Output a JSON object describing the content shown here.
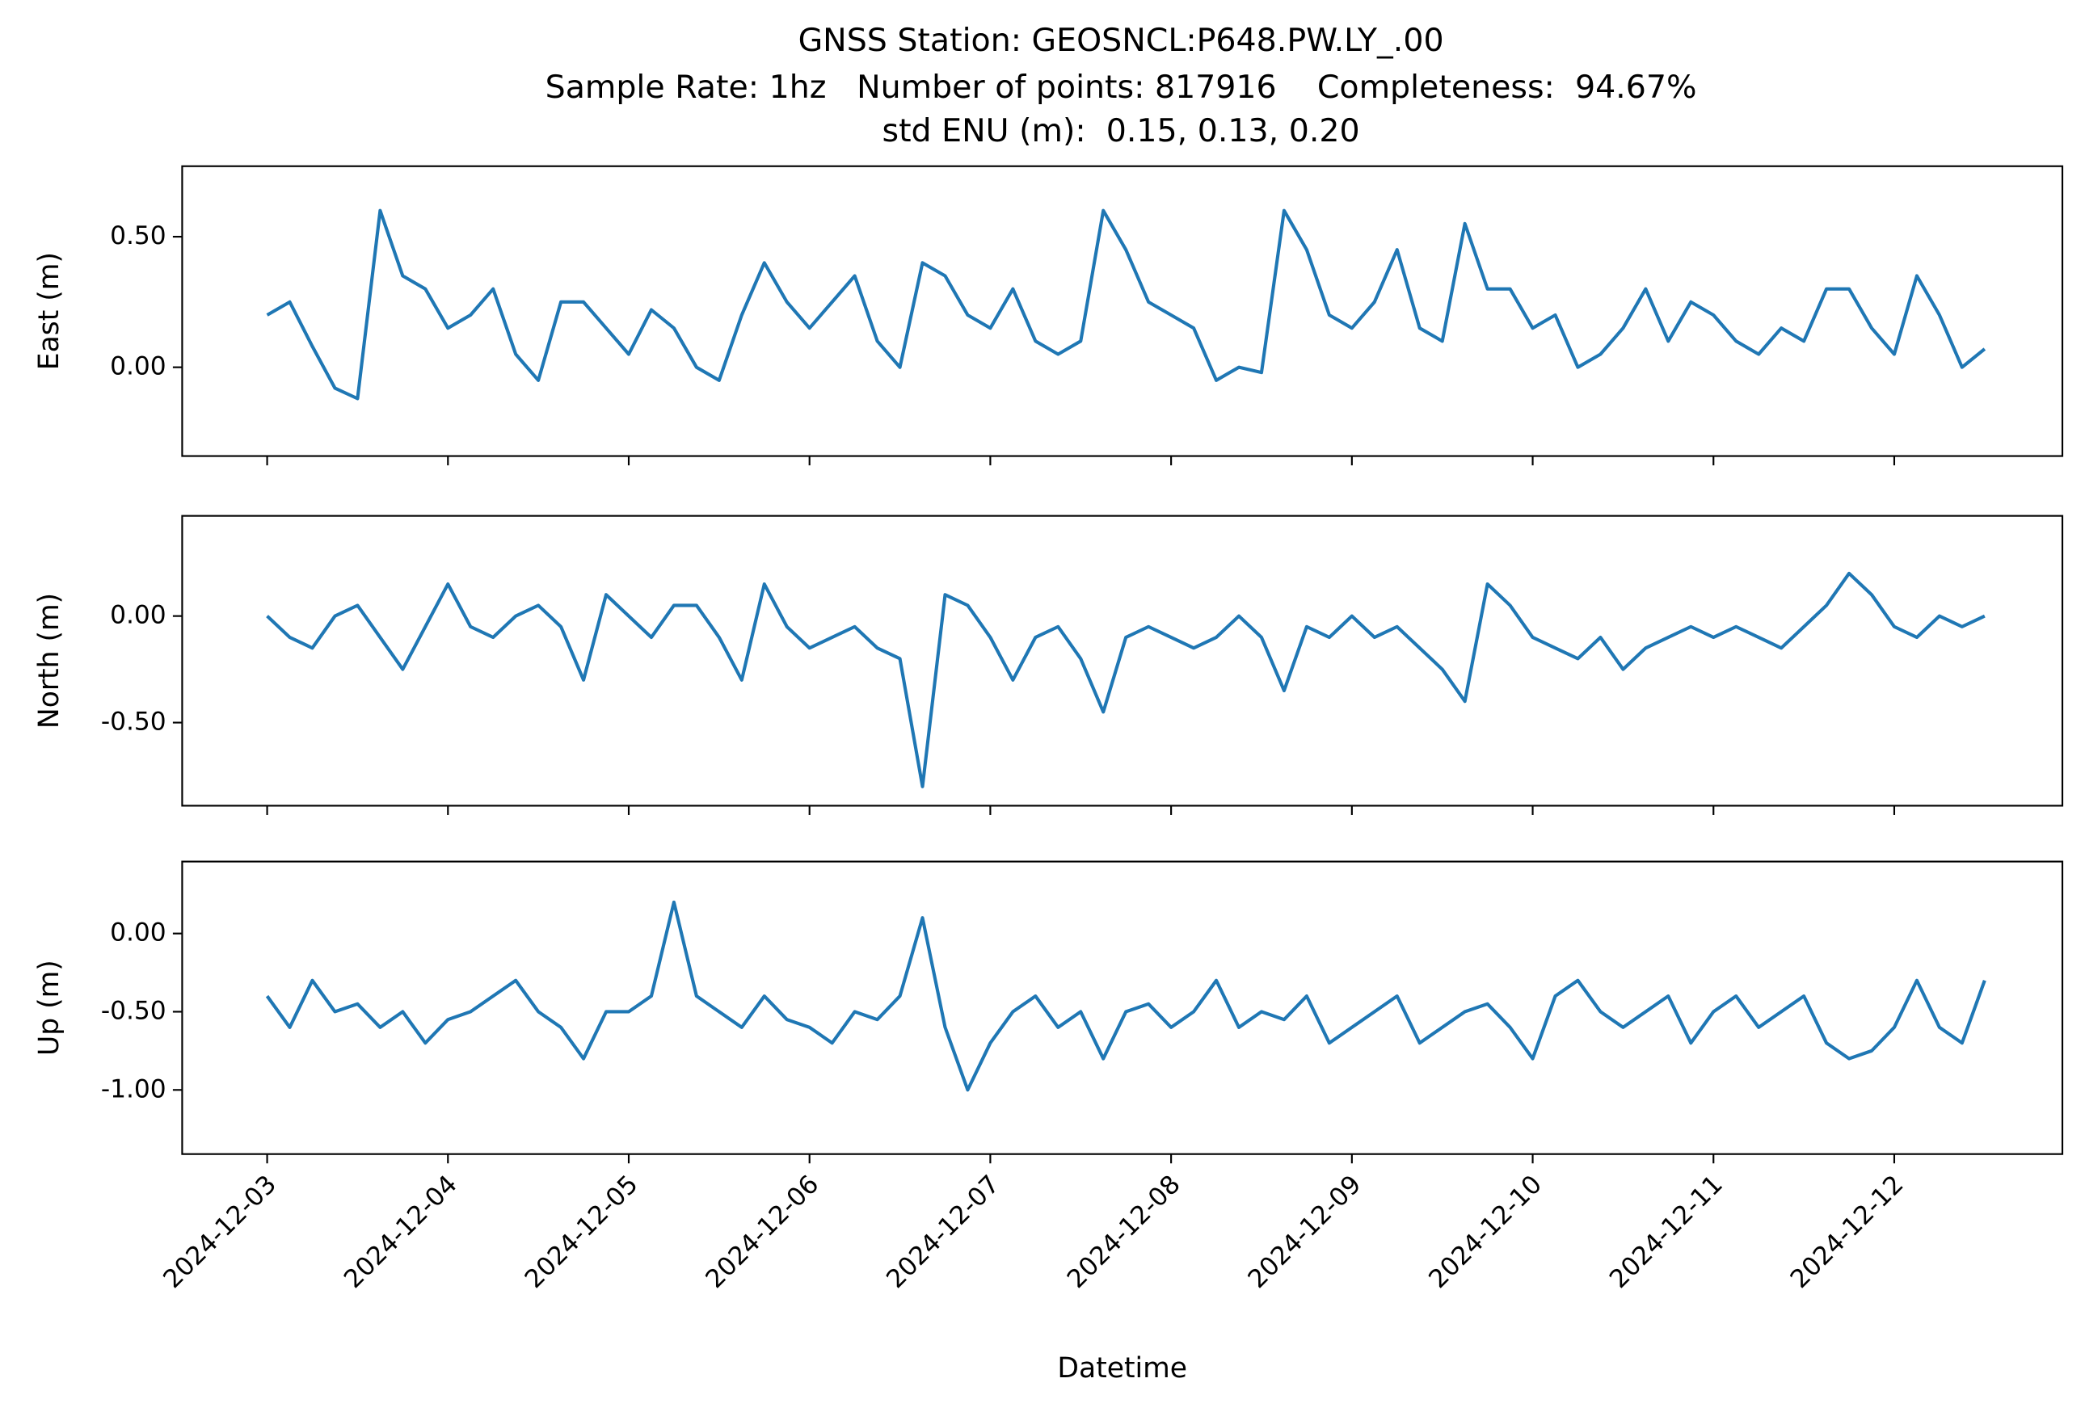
{
  "chart_data": [
    {
      "type": "line",
      "title": "GNSS Station: GEOSNCL:P648.PW.LY_.00",
      "subtitle": [
        "Sample Rate: 1hz   Number of points: 817916    Completeness:  94.67%",
        "std ENU (m):  0.15, 0.13, 0.20"
      ],
      "ylabel": "East (m)",
      "color": "#1f77b4",
      "x": [
        0,
        0.125,
        0.25,
        0.375,
        0.5,
        0.625,
        0.75,
        0.875,
        1,
        1.125,
        1.25,
        1.375,
        1.5,
        1.625,
        1.75,
        1.875,
        2,
        2.125,
        2.25,
        2.375,
        2.5,
        2.625,
        2.75,
        2.875,
        3,
        3.125,
        3.25,
        3.375,
        3.5,
        3.625,
        3.75,
        3.875,
        4,
        4.125,
        4.25,
        4.375,
        4.5,
        4.625,
        4.75,
        4.875,
        5,
        5.125,
        5.25,
        5.375,
        5.5,
        5.625,
        5.75,
        5.875,
        6,
        6.125,
        6.25,
        6.375,
        6.5,
        6.625,
        6.75,
        6.875,
        7,
        7.125,
        7.25,
        7.375,
        7.5,
        7.625,
        7.75,
        7.875,
        8,
        8.125,
        8.25,
        8.375,
        8.5,
        8.625,
        8.75,
        8.875,
        9,
        9.125,
        9.25,
        9.375,
        9.5
      ],
      "values": [
        0.2,
        0.25,
        0.08,
        -0.08,
        -0.12,
        0.6,
        0.35,
        0.3,
        0.15,
        0.2,
        0.3,
        0.05,
        -0.05,
        0.25,
        0.25,
        0.15,
        0.05,
        0.22,
        0.15,
        0.0,
        -0.05,
        0.2,
        0.4,
        0.25,
        0.15,
        0.25,
        0.35,
        0.1,
        0.0,
        0.4,
        0.35,
        0.2,
        0.15,
        0.3,
        0.1,
        0.05,
        0.1,
        0.6,
        0.45,
        0.25,
        0.2,
        0.15,
        -0.05,
        0.0,
        -0.02,
        0.6,
        0.45,
        0.2,
        0.15,
        0.25,
        0.45,
        0.15,
        0.1,
        0.55,
        0.3,
        0.3,
        0.15,
        0.2,
        0.0,
        0.05,
        0.15,
        0.3,
        0.1,
        0.25,
        0.2,
        0.1,
        0.05,
        0.15,
        0.1,
        0.3,
        0.3,
        0.15,
        0.05,
        0.35,
        0.2,
        0.0,
        0.07
      ],
      "xlim": [
        -0.47,
        9.93
      ],
      "ylim": [
        -0.34,
        0.77
      ],
      "yticks": [
        {
          "value": 0,
          "label": "0.00"
        },
        {
          "value": 0.5,
          "label": "0.50"
        }
      ]
    },
    {
      "type": "line",
      "ylabel": "North (m)",
      "color": "#1f77b4",
      "x": [
        0,
        0.125,
        0.25,
        0.375,
        0.5,
        0.625,
        0.75,
        0.875,
        1,
        1.125,
        1.25,
        1.375,
        1.5,
        1.625,
        1.75,
        1.875,
        2,
        2.125,
        2.25,
        2.375,
        2.5,
        2.625,
        2.75,
        2.875,
        3,
        3.125,
        3.25,
        3.375,
        3.5,
        3.625,
        3.75,
        3.875,
        4,
        4.125,
        4.25,
        4.375,
        4.5,
        4.625,
        4.75,
        4.875,
        5,
        5.125,
        5.25,
        5.375,
        5.5,
        5.625,
        5.75,
        5.875,
        6,
        6.125,
        6.25,
        6.375,
        6.5,
        6.625,
        6.75,
        6.875,
        7,
        7.125,
        7.25,
        7.375,
        7.5,
        7.625,
        7.75,
        7.875,
        8,
        8.125,
        8.25,
        8.375,
        8.5,
        8.625,
        8.75,
        8.875,
        9,
        9.125,
        9.25,
        9.375,
        9.5
      ],
      "values": [
        0.0,
        -0.1,
        -0.15,
        0.0,
        0.05,
        -0.1,
        -0.25,
        -0.05,
        0.15,
        -0.05,
        -0.1,
        0.0,
        0.05,
        -0.05,
        -0.3,
        0.1,
        0.0,
        -0.1,
        0.05,
        0.05,
        -0.1,
        -0.3,
        0.15,
        -0.05,
        -0.15,
        -0.1,
        -0.05,
        -0.15,
        -0.2,
        -0.8,
        0.1,
        0.05,
        -0.1,
        -0.3,
        -0.1,
        -0.05,
        -0.2,
        -0.45,
        -0.1,
        -0.05,
        -0.1,
        -0.15,
        -0.1,
        0.0,
        -0.1,
        -0.35,
        -0.05,
        -0.1,
        0.0,
        -0.1,
        -0.05,
        -0.15,
        -0.25,
        -0.4,
        0.15,
        0.05,
        -0.1,
        -0.15,
        -0.2,
        -0.1,
        -0.25,
        -0.15,
        -0.1,
        -0.05,
        -0.1,
        -0.05,
        -0.1,
        -0.15,
        -0.05,
        0.05,
        0.2,
        0.1,
        -0.05,
        -0.1,
        0.0,
        -0.05,
        0.0
      ],
      "xlim": [
        -0.47,
        9.93
      ],
      "ylim": [
        -0.89,
        0.47
      ],
      "yticks": [
        {
          "value": -0.5,
          "label": "-0.50"
        },
        {
          "value": 0,
          "label": "0.00"
        }
      ]
    },
    {
      "type": "line",
      "ylabel": "Up (m)",
      "xlabel": "Datetime",
      "color": "#1f77b4",
      "x": [
        0,
        0.125,
        0.25,
        0.375,
        0.5,
        0.625,
        0.75,
        0.875,
        1,
        1.125,
        1.25,
        1.375,
        1.5,
        1.625,
        1.75,
        1.875,
        2,
        2.125,
        2.25,
        2.375,
        2.5,
        2.625,
        2.75,
        2.875,
        3,
        3.125,
        3.25,
        3.375,
        3.5,
        3.625,
        3.75,
        3.875,
        4,
        4.125,
        4.25,
        4.375,
        4.5,
        4.625,
        4.75,
        4.875,
        5,
        5.125,
        5.25,
        5.375,
        5.5,
        5.625,
        5.75,
        5.875,
        6,
        6.125,
        6.25,
        6.375,
        6.5,
        6.625,
        6.75,
        6.875,
        7,
        7.125,
        7.25,
        7.375,
        7.5,
        7.625,
        7.75,
        7.875,
        8,
        8.125,
        8.25,
        8.375,
        8.5,
        8.625,
        8.75,
        8.875,
        9,
        9.125,
        9.25,
        9.375,
        9.5
      ],
      "values": [
        -0.4,
        -0.6,
        -0.3,
        -0.5,
        -0.45,
        -0.6,
        -0.5,
        -0.7,
        -0.55,
        -0.5,
        -0.4,
        -0.3,
        -0.5,
        -0.6,
        -0.8,
        -0.5,
        -0.5,
        -0.4,
        0.2,
        -0.4,
        -0.5,
        -0.6,
        -0.4,
        -0.55,
        -0.6,
        -0.7,
        -0.5,
        -0.55,
        -0.4,
        0.1,
        -0.6,
        -1.0,
        -0.7,
        -0.5,
        -0.4,
        -0.6,
        -0.5,
        -0.8,
        -0.5,
        -0.45,
        -0.6,
        -0.5,
        -0.3,
        -0.6,
        -0.5,
        -0.55,
        -0.4,
        -0.7,
        -0.6,
        -0.5,
        -0.4,
        -0.7,
        -0.6,
        -0.5,
        -0.45,
        -0.6,
        -0.8,
        -0.4,
        -0.3,
        -0.5,
        -0.6,
        -0.5,
        -0.4,
        -0.7,
        -0.5,
        -0.4,
        -0.6,
        -0.5,
        -0.4,
        -0.7,
        -0.8,
        -0.75,
        -0.6,
        -0.3,
        -0.6,
        -0.7,
        -0.3
      ],
      "xlim": [
        -0.47,
        9.93
      ],
      "xticks": [
        {
          "value": 0,
          "label": "2024-12-03"
        },
        {
          "value": 1,
          "label": "2024-12-04"
        },
        {
          "value": 2,
          "label": "2024-12-05"
        },
        {
          "value": 3,
          "label": "2024-12-06"
        },
        {
          "value": 4,
          "label": "2024-12-07"
        },
        {
          "value": 5,
          "label": "2024-12-08"
        },
        {
          "value": 6,
          "label": "2024-12-09"
        },
        {
          "value": 7,
          "label": "2024-12-10"
        },
        {
          "value": 8,
          "label": "2024-12-11"
        },
        {
          "value": 9,
          "label": "2024-12-12"
        }
      ],
      "ylim": [
        -1.41,
        0.46
      ],
      "yticks": [
        {
          "value": -1,
          "label": "-1.00"
        },
        {
          "value": -0.5,
          "label": "-0.50"
        },
        {
          "value": 0,
          "label": "0.00"
        }
      ]
    }
  ]
}
